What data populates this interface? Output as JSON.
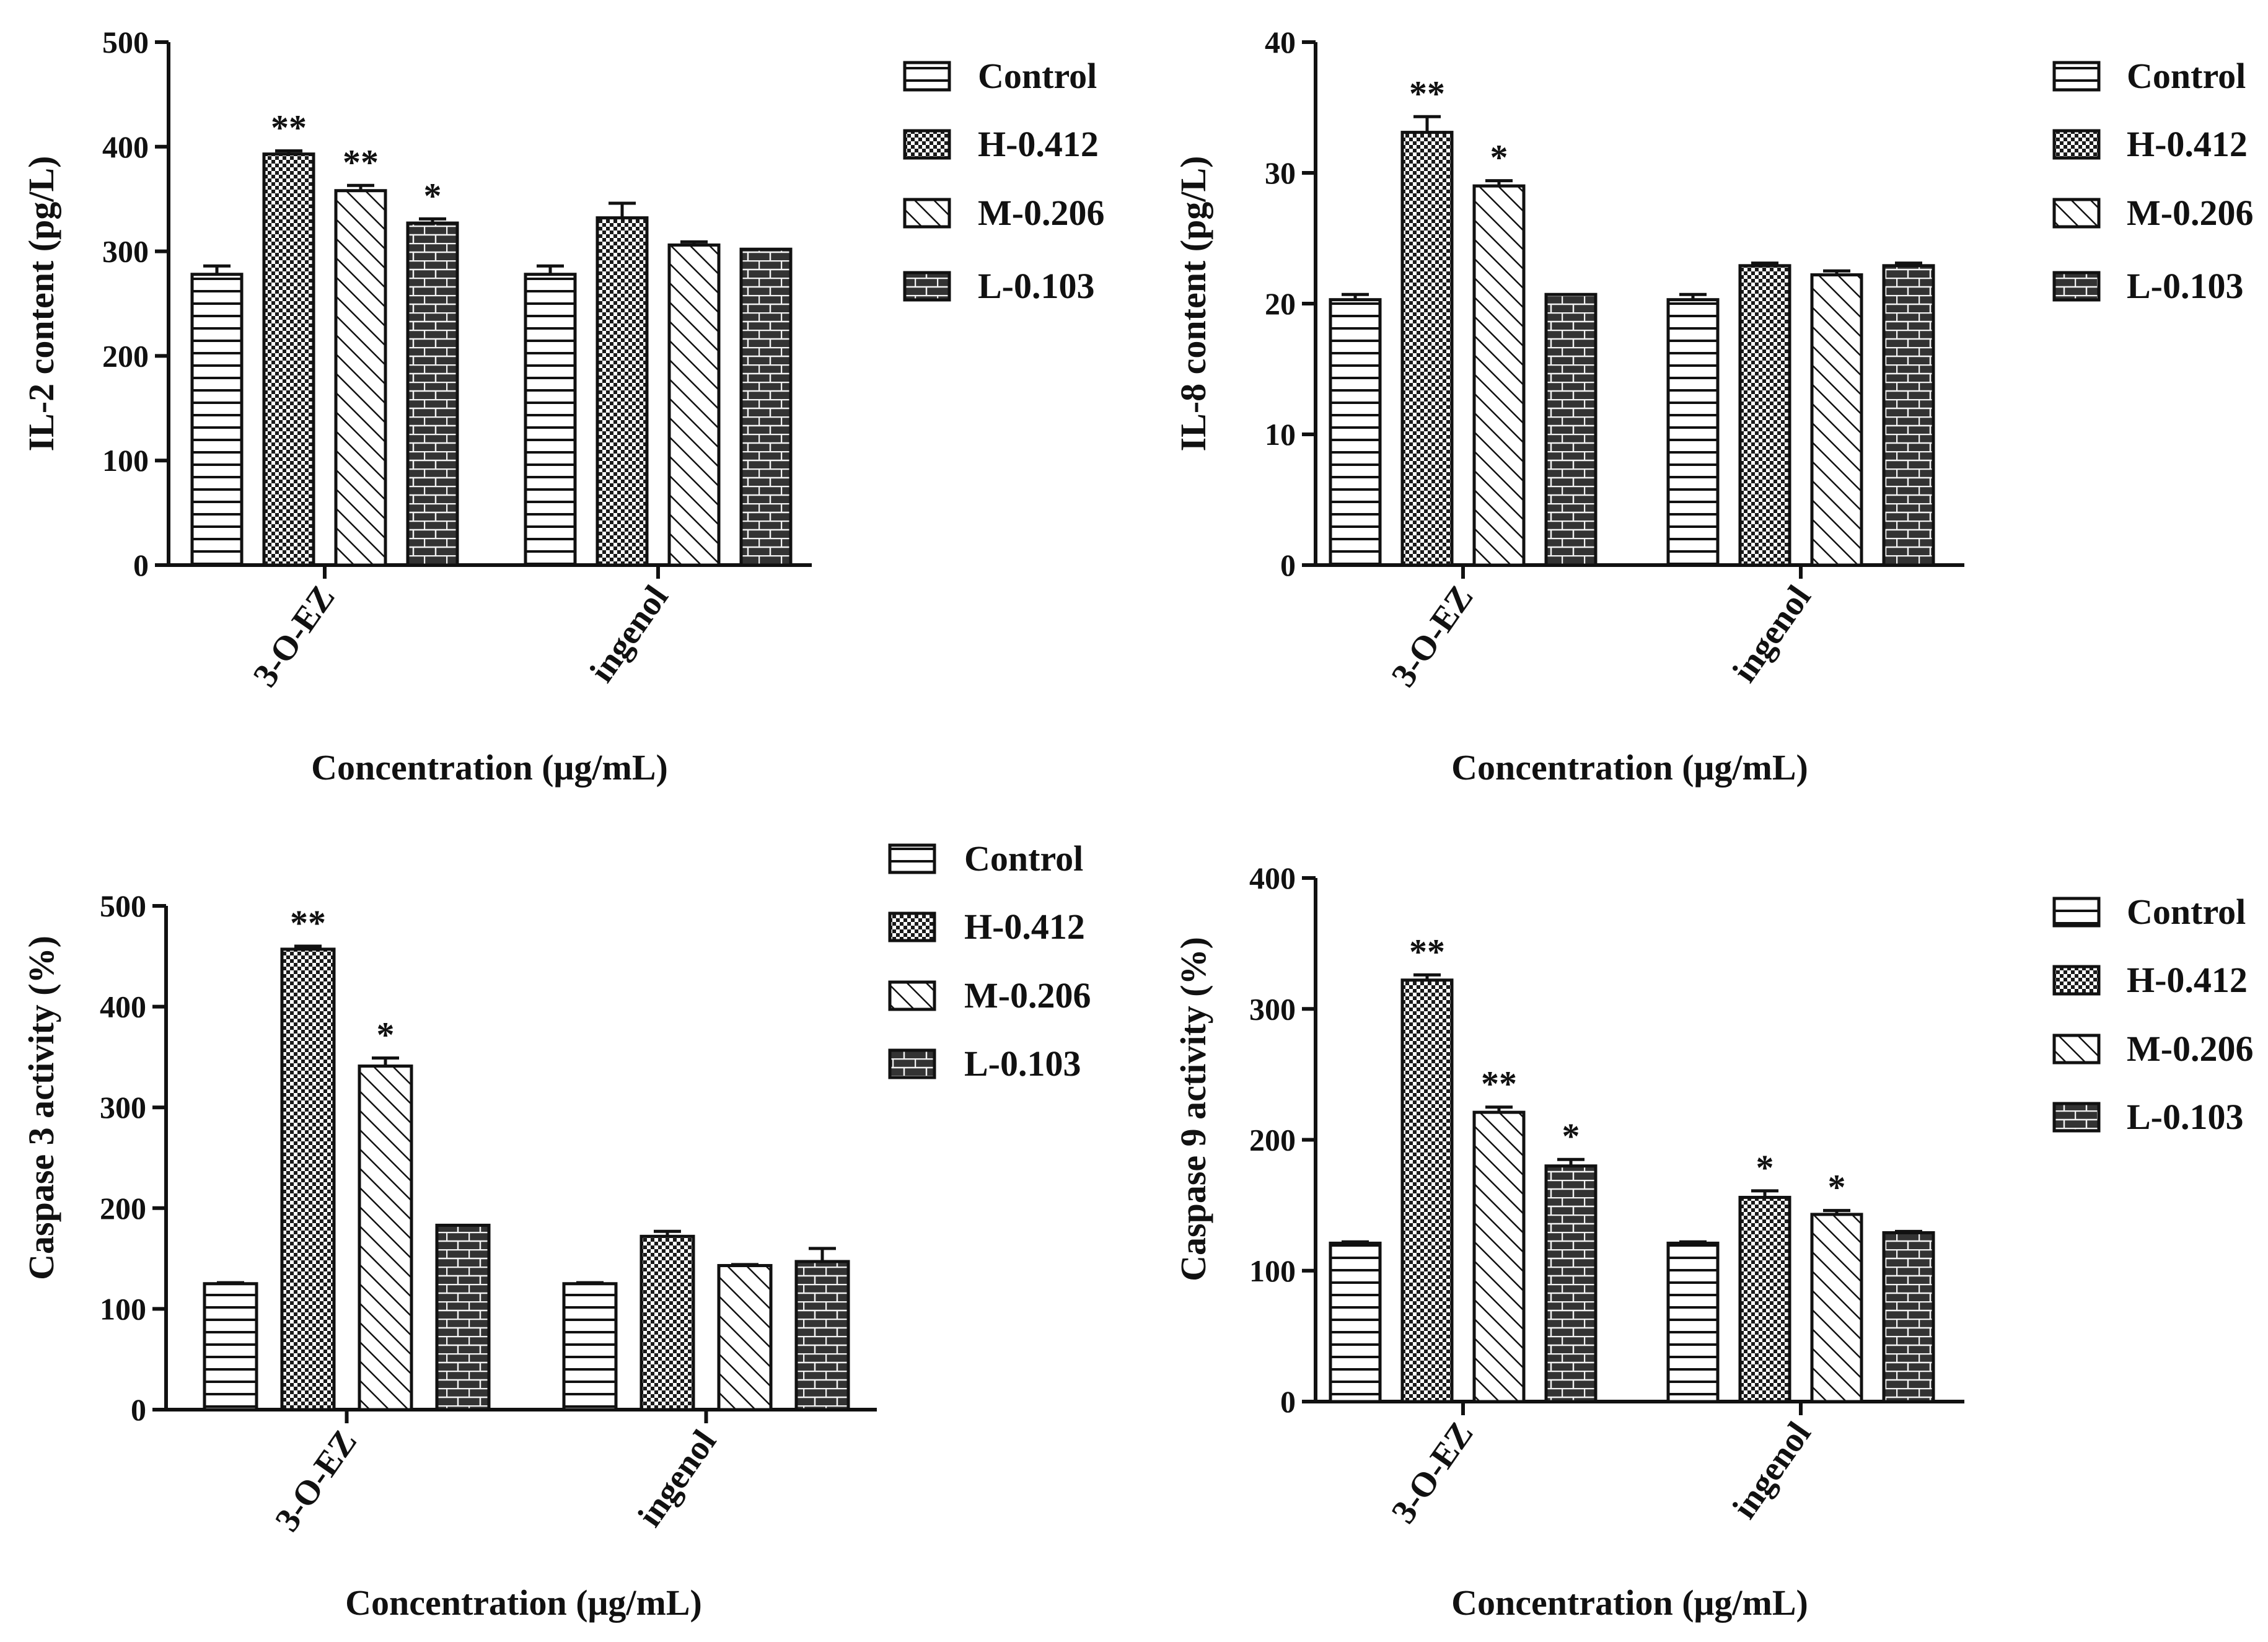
{
  "legend": [
    "Control",
    "H-0.412",
    "M-0.206",
    "L-0.103"
  ],
  "chart_data": [
    {
      "type": "bar",
      "title": "",
      "ylabel": "IL-2 content (pg/L)",
      "xlabel": "Concentration (μg/mL)",
      "categories": [
        "3-O-EZ",
        "ingenol"
      ],
      "ylim": [
        0,
        500
      ],
      "yticks": [
        "0",
        "100",
        "200",
        "300",
        "400",
        "500"
      ],
      "series": [
        {
          "name": "Control",
          "values": [
            278,
            278
          ],
          "errors": [
            8,
            8
          ],
          "sig": [
            "",
            ""
          ]
        },
        {
          "name": "H-0.412",
          "values": [
            393,
            332
          ],
          "errors": [
            3,
            14
          ],
          "sig": [
            "**",
            ""
          ]
        },
        {
          "name": "M-0.206",
          "values": [
            358,
            306
          ],
          "errors": [
            5,
            3
          ],
          "sig": [
            "**",
            ""
          ]
        },
        {
          "name": "L-0.103",
          "values": [
            327,
            302
          ],
          "errors": [
            4,
            0
          ],
          "sig": [
            "*",
            ""
          ]
        }
      ]
    },
    {
      "type": "bar",
      "title": "",
      "ylabel": "IL-8 content (pg/L)",
      "xlabel": "Concentration (μg/mL)",
      "categories": [
        "3-O-EZ",
        "ingenol"
      ],
      "ylim": [
        0,
        40
      ],
      "yticks": [
        "0",
        "10",
        "20",
        "30",
        "40"
      ],
      "series": [
        {
          "name": "Control",
          "values": [
            20.3,
            20.3
          ],
          "errors": [
            0.4,
            0.4
          ],
          "sig": [
            "",
            ""
          ]
        },
        {
          "name": "H-0.412",
          "values": [
            33.1,
            22.9
          ],
          "errors": [
            1.2,
            0.2
          ],
          "sig": [
            "**",
            ""
          ]
        },
        {
          "name": "M-0.206",
          "values": [
            29.0,
            22.2
          ],
          "errors": [
            0.4,
            0.3
          ],
          "sig": [
            "*",
            ""
          ]
        },
        {
          "name": "L-0.103",
          "values": [
            20.7,
            22.9
          ],
          "errors": [
            0,
            0.2
          ],
          "sig": [
            "",
            ""
          ]
        }
      ]
    },
    {
      "type": "bar",
      "title": "",
      "ylabel": "Caspase 3 activity (%)",
      "xlabel": "Concentration (μg/mL)",
      "categories": [
        "3-O-EZ",
        "ingenol"
      ],
      "ylim": [
        0,
        500
      ],
      "yticks": [
        "0",
        "100",
        "200",
        "300",
        "400",
        "500"
      ],
      "series": [
        {
          "name": "Control",
          "values": [
            125,
            125
          ],
          "errors": [
            1,
            1
          ],
          "sig": [
            "",
            ""
          ]
        },
        {
          "name": "H-0.412",
          "values": [
            457,
            172
          ],
          "errors": [
            3,
            5
          ],
          "sig": [
            "**",
            ""
          ]
        },
        {
          "name": "M-0.206",
          "values": [
            341,
            143
          ],
          "errors": [
            8,
            1
          ],
          "sig": [
            "*",
            ""
          ]
        },
        {
          "name": "L-0.103",
          "values": [
            183,
            147
          ],
          "errors": [
            0,
            13
          ],
          "sig": [
            "",
            ""
          ]
        }
      ]
    },
    {
      "type": "bar",
      "title": "",
      "ylabel": "Caspase 9 activity (%)",
      "xlabel": "Concentration (μg/mL)",
      "categories": [
        "3-O-EZ",
        "ingenol"
      ],
      "ylim": [
        0,
        400
      ],
      "yticks": [
        "0",
        "100",
        "200",
        "300",
        "400"
      ],
      "series": [
        {
          "name": "Control",
          "values": [
            121,
            121
          ],
          "errors": [
            1,
            1
          ],
          "sig": [
            "",
            ""
          ]
        },
        {
          "name": "H-0.412",
          "values": [
            322,
            156
          ],
          "errors": [
            4,
            5
          ],
          "sig": [
            "**",
            "*"
          ]
        },
        {
          "name": "M-0.206",
          "values": [
            221,
            143
          ],
          "errors": [
            4,
            3
          ],
          "sig": [
            "**",
            "*"
          ]
        },
        {
          "name": "L-0.103",
          "values": [
            180,
            129
          ],
          "errors": [
            5,
            1
          ],
          "sig": [
            "*",
            ""
          ]
        }
      ]
    }
  ]
}
